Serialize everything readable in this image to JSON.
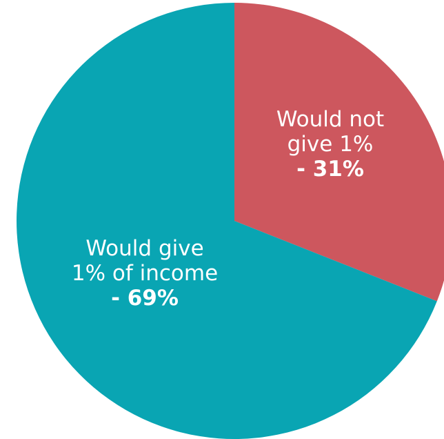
{
  "chart_data": {
    "type": "pie",
    "slices": [
      {
        "label_lines": [
          "Would not",
          "give 1%"
        ],
        "value_text": "- 31%",
        "value": 31,
        "color": "#cd575e"
      },
      {
        "label_lines": [
          "Would give",
          "1% of income"
        ],
        "value_text": "- 69%",
        "value": 69,
        "color": "#09a5b3"
      }
    ],
    "start_angle": "12 o'clock",
    "direction": "clockwise"
  }
}
